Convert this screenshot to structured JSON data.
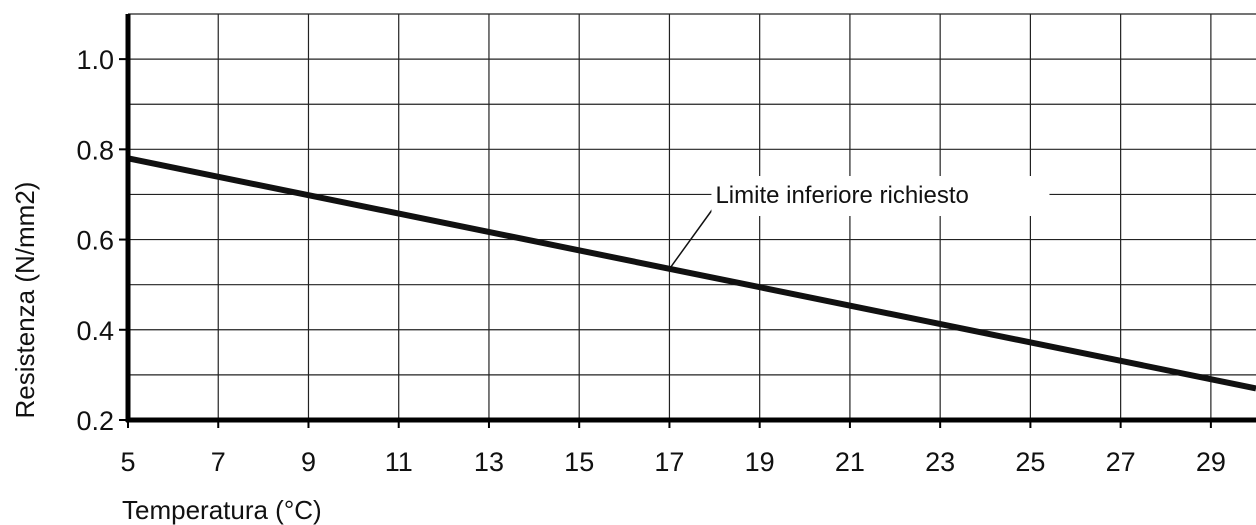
{
  "chart_data": {
    "type": "line",
    "xlabel": "Temperatura (°C)",
    "ylabel": "Resistenza (N/mm2)",
    "xlim": [
      5,
      30
    ],
    "ylim": [
      0.2,
      1.1
    ],
    "x_ticks": [
      5,
      7,
      9,
      11,
      13,
      15,
      17,
      19,
      21,
      23,
      25,
      27,
      29
    ],
    "x_tick_labels": [
      "5",
      "7",
      "9",
      "11",
      "13",
      "15",
      "17",
      "19",
      "21",
      "23",
      "25",
      "27",
      "29"
    ],
    "y_ticks": [
      0.2,
      0.4,
      0.6,
      0.8,
      1.0
    ],
    "y_tick_labels": [
      "0.2",
      "0.4",
      "0.6",
      "0.8",
      "1.0"
    ],
    "grid": true,
    "series": [
      {
        "name": "Limite inferiore richiesto",
        "x": [
          5,
          30
        ],
        "y": [
          0.78,
          0.27
        ]
      }
    ],
    "annotation": {
      "text": "Limite inferiore richiesto",
      "points_to": {
        "x": 17,
        "y": 0.535
      }
    },
    "colors": {
      "line": "#111111",
      "grid": "#222222",
      "axis": "#000000"
    }
  }
}
